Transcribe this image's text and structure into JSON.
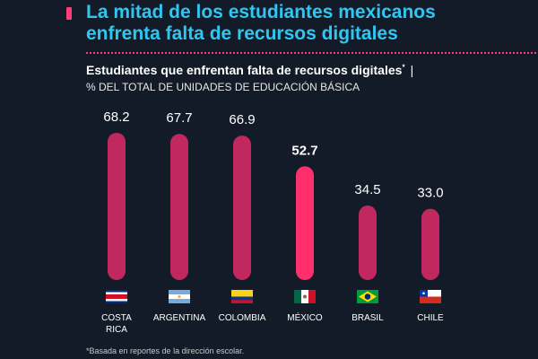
{
  "headline": {
    "line1": "La mitad de los estudiantes mexicanos",
    "line2": "enfrenta falta de recursos digitales"
  },
  "subtitle": {
    "text": "Estudiantes que enfrentan falta de recursos digitales",
    "mark": "*",
    "separator": "|"
  },
  "unit_label": "% DEL TOTAL DE UNIDADES DE EDUCACIÓN BÁSICA",
  "footnote": "*Basada en reportes de la dirección escolar.",
  "colors": {
    "background": "#141b28",
    "headline": "#2ec7f2",
    "bar": "#c0285f",
    "bar_highlight": "#ff2f6d",
    "accent": "#ff3d77"
  },
  "chart_data": {
    "type": "bar",
    "title": "Estudiantes que enfrentan falta de recursos digitales",
    "ylabel": "% DEL TOTAL DE UNIDADES DE EDUCACIÓN BÁSICA",
    "xlabel": "",
    "ylim": [
      0,
      68.2
    ],
    "grid": false,
    "legend": "none",
    "categories": [
      "COSTA RICA",
      "ARGENTINA",
      "COLOMBIA",
      "MÉXICO",
      "BRASIL",
      "CHILE"
    ],
    "category_lines": [
      [
        "COSTA",
        "RICA"
      ],
      [
        "ARGENTINA"
      ],
      [
        "COLOMBIA"
      ],
      [
        "MÉXICO"
      ],
      [
        "BRASIL"
      ],
      [
        "CHILE"
      ]
    ],
    "values": [
      68.2,
      67.7,
      66.9,
      52.7,
      34.5,
      33.0
    ],
    "value_labels": [
      "68.2",
      "67.7",
      "66.9",
      "52.7",
      "34.5",
      "33.0"
    ],
    "highlight": "MÉXICO",
    "flags": [
      "costa-rica-flag-icon",
      "argentina-flag-icon",
      "colombia-flag-icon",
      "mexico-flag-icon",
      "brazil-flag-icon",
      "chile-flag-icon"
    ]
  }
}
